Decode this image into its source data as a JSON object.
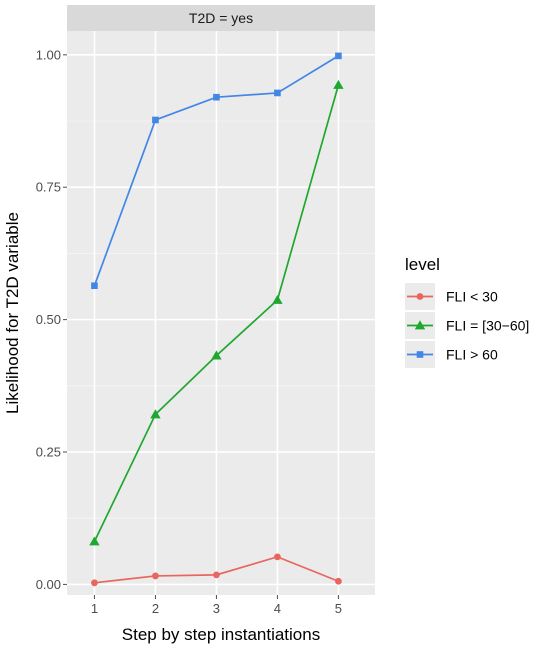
{
  "chart_data": {
    "type": "line",
    "facet_label": "T2D = yes",
    "xlabel": "Step by step instantiations",
    "ylabel": "Likelihood for T2D variable",
    "x": [
      1,
      2,
      3,
      4,
      5
    ],
    "x_ticks": [
      "1",
      "2",
      "3",
      "4",
      "5"
    ],
    "y_ticks": [
      "0.00",
      "0.25",
      "0.50",
      "0.75",
      "1.00"
    ],
    "xlim": [
      0.55,
      5.6
    ],
    "ylim": [
      -0.02,
      1.045
    ],
    "grid": true,
    "legend": {
      "title": "level",
      "position": "right"
    },
    "series": [
      {
        "name": "FLI < 30",
        "color": "#e8665e",
        "marker": "circle",
        "values": [
          0.003,
          0.016,
          0.018,
          0.052,
          0.006
        ]
      },
      {
        "name": "FLI = [30−60]",
        "color": "#1fa82f",
        "marker": "triangle",
        "values": [
          0.081,
          0.321,
          0.432,
          0.537,
          0.943
        ]
      },
      {
        "name": "FLI > 60",
        "color": "#4287e6",
        "marker": "square",
        "values": [
          0.564,
          0.877,
          0.92,
          0.928,
          0.998
        ]
      }
    ]
  }
}
